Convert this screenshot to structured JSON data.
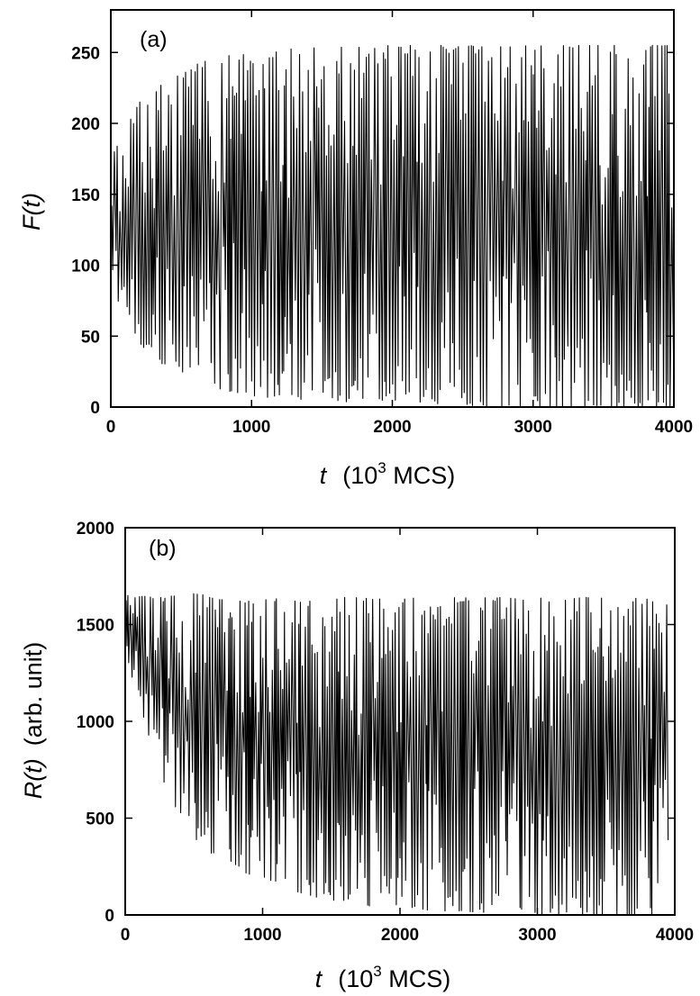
{
  "chart_data": [
    {
      "type": "line",
      "panel_label": "(a)",
      "ylabel": {
        "symbol": "F(t)"
      },
      "xlabel": {
        "symbol": "t",
        "unit_prefix": "(10",
        "unit_exp": "3",
        "unit_suffix": " MCS)"
      },
      "xlim": [
        0,
        4000
      ],
      "ylim": [
        0,
        280
      ],
      "xticks": [
        0,
        1000,
        2000,
        3000,
        4000
      ],
      "yticks": [
        0,
        50,
        100,
        150,
        200,
        250
      ],
      "grid": false,
      "series": [
        {
          "color": "#000000",
          "x": [
            0,
            100,
            200,
            300,
            400,
            500,
            600,
            700,
            800,
            900,
            1000,
            1200,
            1400,
            1600,
            1800,
            2000,
            2500,
            3000,
            3500,
            4000
          ],
          "y_max": [
            175,
            195,
            215,
            225,
            232,
            238,
            242,
            245,
            247,
            249,
            250,
            252,
            253,
            254,
            254,
            255,
            255,
            255,
            255,
            255
          ],
          "y_min": [
            85,
            65,
            45,
            35,
            28,
            22,
            18,
            15,
            12,
            10,
            8,
            6,
            5,
            4,
            3,
            2,
            1,
            0,
            0,
            0
          ],
          "approx_cycles": 230
        }
      ]
    },
    {
      "type": "line",
      "panel_label": "(b)",
      "ylabel": {
        "symbol": "R(t)",
        "unit": "(arb. unit)"
      },
      "xlabel": {
        "symbol": "t",
        "unit_prefix": "(10",
        "unit_exp": "3",
        "unit_suffix": " MCS)"
      },
      "xlim": [
        0,
        4000
      ],
      "ylim": [
        0,
        2000
      ],
      "xticks": [
        0,
        1000,
        2000,
        3000,
        4000
      ],
      "yticks": [
        0,
        500,
        1000,
        1500,
        2000
      ],
      "grid": false,
      "series": [
        {
          "color": "#000000",
          "x": [
            0,
            100,
            200,
            300,
            400,
            500,
            600,
            800,
            1000,
            1200,
            1400,
            1600,
            2000,
            2500,
            3000,
            3500,
            4000
          ],
          "y_max": [
            1650,
            1650,
            1640,
            1640,
            1660,
            1660,
            1650,
            1640,
            1640,
            1630,
            1640,
            1640,
            1640,
            1640,
            1640,
            1640,
            1630
          ],
          "y_min": [
            1350,
            1100,
            850,
            650,
            500,
            400,
            330,
            240,
            180,
            130,
            90,
            60,
            30,
            15,
            5,
            2,
            0
          ],
          "approx_cycles": 230
        }
      ]
    }
  ]
}
